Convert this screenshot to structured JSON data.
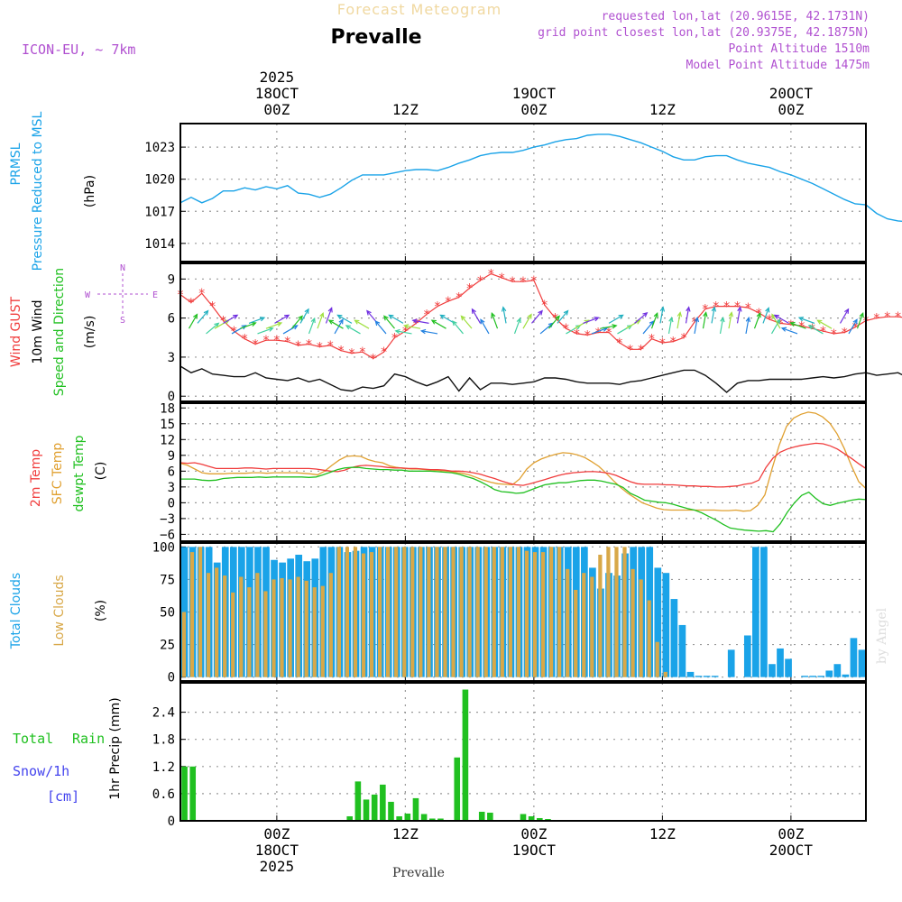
{
  "header": {
    "product": "Forecast Meteogram",
    "location": "Prevalle",
    "model": "ICON-EU, ~ 7km",
    "requested": "requested lon,lat (20.9615E, 42.1731N)",
    "grid_point": "grid point closest lon,lat (20.9375E, 42.1875N)",
    "point_alt": "Point Altitude 1510m",
    "model_alt": "Model Point Altitude 1475m",
    "footer_location": "Prevalle",
    "watermark": "by Angel"
  },
  "time_axis": {
    "labels": [
      {
        "idx": 0,
        "lines": [
          "2025",
          "18OCT",
          "00Z"
        ]
      },
      {
        "idx": 1,
        "lines": [
          "12Z"
        ]
      },
      {
        "idx": 2,
        "lines": [
          "19OCT",
          "00Z"
        ]
      },
      {
        "idx": 3,
        "lines": [
          "12Z"
        ]
      },
      {
        "idx": 4,
        "lines": [
          "20OCT",
          "00Z"
        ]
      },
      {
        "idx": 5,
        "lines": [
          "12Z"
        ]
      }
    ],
    "start_hour": -9,
    "end_hour": 55
  },
  "colors": {
    "pressure": "#1aa3e8",
    "gust": "#f03c3c",
    "wind": "#111111",
    "temp": "#f03c3c",
    "sfc": "#e0a030",
    "dewpt": "#20c020",
    "total_clouds": "#1aa3e8",
    "low_clouds": "#d8a848",
    "rain": "#20c020",
    "snow": "#4444ee",
    "meta": "#b050d0",
    "compass": "#b050d0"
  },
  "chart_data": [
    {
      "type": "line",
      "name": "pressure",
      "title": "PRMSL",
      "ylabel_lines": [
        "PRMSL",
        "Pressure Reduced to MSL"
      ],
      "unit": "(hPa)",
      "ylim": [
        1012.3,
        1025.2
      ],
      "yticks": [
        1014,
        1017,
        1020,
        1023
      ],
      "x_start": -9,
      "x_step": 1,
      "values": [
        1017.8,
        1018.3,
        1017.8,
        1018.2,
        1018.9,
        1018.9,
        1019.2,
        1019.0,
        1019.3,
        1019.1,
        1019.4,
        1018.7,
        1018.6,
        1018.3,
        1018.6,
        1019.2,
        1019.9,
        1020.4,
        1020.4,
        1020.4,
        1020.6,
        1020.8,
        1020.9,
        1020.9,
        1020.8,
        1021.1,
        1021.5,
        1021.8,
        1022.2,
        1022.4,
        1022.5,
        1022.5,
        1022.7,
        1023.0,
        1023.2,
        1023.5,
        1023.7,
        1023.8,
        1024.1,
        1024.2,
        1024.2,
        1024.0,
        1023.7,
        1023.4,
        1023.0,
        1022.6,
        1022.1,
        1021.8,
        1021.8,
        1022.1,
        1022.2,
        1022.2,
        1021.8,
        1021.5,
        1021.3,
        1021.1,
        1020.7,
        1020.4,
        1020.0,
        1019.6,
        1019.1,
        1018.6,
        1018.1,
        1017.7,
        1017.6,
        1016.8,
        1016.3,
        1016.1,
        1016.0,
        1015.7,
        1015.2,
        1014.6,
        1014.2,
        1013.9,
        1014.0,
        1014.1,
        1014.6
      ]
    },
    {
      "type": "line",
      "name": "wind",
      "ylabel_lines": [
        "Wind GUST",
        "10m Wind",
        "Speed and Direction"
      ],
      "unit": "(m/s)",
      "compass": {
        "n": "N",
        "s": "S",
        "w": "W",
        "e": "E"
      },
      "ylim": [
        -0.4,
        10.2
      ],
      "yticks": [
        0,
        3,
        6,
        9
      ],
      "x_start": -9,
      "x_step": 1,
      "gust": [
        7.8,
        7.2,
        7.9,
        6.9,
        5.8,
        5.0,
        4.4,
        4.0,
        4.3,
        4.3,
        4.2,
        3.9,
        4.0,
        3.8,
        3.9,
        3.5,
        3.3,
        3.4,
        2.9,
        3.4,
        4.5,
        5.0,
        5.6,
        6.3,
        6.9,
        7.3,
        7.6,
        8.3,
        8.9,
        9.4,
        9.1,
        8.8,
        8.8,
        8.9,
        7.0,
        6.0,
        5.2,
        4.8,
        4.7,
        4.9,
        4.9,
        4.1,
        3.6,
        3.6,
        4.4,
        4.1,
        4.2,
        4.5,
        5.7,
        6.7,
        6.9,
        6.9,
        6.9,
        6.8,
        6.4,
        5.9,
        5.6,
        5.5,
        5.4,
        5.2,
        5.0,
        4.8,
        4.9,
        5.3,
        5.8,
        6.0,
        6.1,
        6.1,
        6.0,
        5.8,
        5.8,
        5.6,
        5.9,
        6.3,
        6.8,
        7.4,
        7.7,
        7.7,
        7.5,
        6.9,
        5.7,
        5.9
      ],
      "wind": [
        2.3,
        1.8,
        2.1,
        1.7,
        1.6,
        1.5,
        1.5,
        1.8,
        1.4,
        1.3,
        1.2,
        1.4,
        1.1,
        1.3,
        0.9,
        0.5,
        0.4,
        0.7,
        0.6,
        0.8,
        1.7,
        1.5,
        1.1,
        0.8,
        1.1,
        1.5,
        0.4,
        1.4,
        0.5,
        1.0,
        1.0,
        0.9,
        1.0,
        1.1,
        1.4,
        1.4,
        1.3,
        1.1,
        1.0,
        1.0,
        1.0,
        0.9,
        1.1,
        1.2,
        1.4,
        1.6,
        1.8,
        2.0,
        2.0,
        1.6,
        1.0,
        0.3,
        1.0,
        1.2,
        1.2,
        1.3,
        1.3,
        1.3,
        1.3,
        1.4,
        1.5,
        1.4,
        1.5,
        1.7,
        1.8,
        1.6,
        1.7,
        1.8,
        1.4,
        1.1,
        1.2,
        1.3,
        1.5,
        1.9,
        1.8,
        1.8,
        1.6,
        1.0,
        0.5,
        1.2,
        1.6
      ],
      "arrows_deg": [
        30,
        40,
        50,
        60,
        60,
        60,
        70,
        70,
        70,
        70,
        60,
        60,
        40,
        30,
        20,
        20,
        20,
        30,
        300,
        300,
        300,
        300,
        320,
        320,
        320,
        300,
        280,
        280,
        280,
        280,
        300,
        300,
        320,
        320,
        330,
        330,
        340,
        350,
        20,
        30,
        40,
        50,
        40,
        40,
        60,
        60,
        70,
        70,
        80,
        60,
        60,
        60,
        50,
        40,
        20,
        10,
        10,
        10,
        10,
        10,
        10,
        10,
        10,
        10,
        10,
        10,
        20,
        20,
        30,
        330,
        300,
        290,
        290,
        290,
        300,
        300,
        30,
        30,
        20
      ]
    },
    {
      "type": "line",
      "name": "temperature",
      "ylabel_lines": [
        "2m Temp",
        "SFC Temp",
        "dewpt Temp"
      ],
      "unit": "(C)",
      "ylim": [
        -7.3,
        18.9
      ],
      "yticks": [
        -6,
        -3,
        0,
        3,
        6,
        9,
        12,
        15,
        18
      ],
      "x_start": -9,
      "x_step": 1,
      "series": [
        {
          "name": "2m Temp",
          "values": [
            7.6,
            7.5,
            7.6,
            7.3,
            6.9,
            6.5,
            6.5,
            6.5,
            6.5,
            6.6,
            6.6,
            6.5,
            6.4,
            6.5,
            6.5,
            6.5,
            6.5,
            6.5,
            6.5,
            6.4,
            6.2,
            6.0,
            5.9,
            6.2,
            6.7,
            7.0,
            7.1,
            7.0,
            6.9,
            6.7,
            6.6,
            6.6,
            6.5,
            6.5,
            6.4,
            6.3,
            6.3,
            6.2,
            6.0,
            6.0,
            5.9,
            5.7,
            5.4,
            5.0,
            4.6,
            4.1,
            3.7,
            3.4,
            3.3,
            3.6,
            4.0,
            4.4,
            4.8,
            5.2,
            5.5,
            5.7,
            5.8,
            5.9,
            5.9,
            5.8,
            5.6,
            5.2,
            4.6,
            4.0,
            3.6,
            3.5,
            3.5,
            3.5,
            3.4,
            3.4,
            3.3,
            3.2,
            3.2,
            3.1,
            3.1,
            3.0,
            3.0,
            3.1,
            3.2,
            3.5,
            3.7,
            4.3,
            6.7,
            8.5,
            9.6,
            10.2,
            10.6,
            10.9,
            11.1,
            11.3,
            11.2,
            10.8,
            10.2,
            9.3,
            8.4,
            7.4,
            6.5
          ]
        },
        {
          "name": "SFC Temp",
          "values": [
            7.5,
            7.1,
            6.4,
            5.7,
            5.5,
            5.5,
            5.5,
            5.6,
            5.6,
            5.6,
            5.7,
            5.7,
            5.6,
            5.7,
            5.7,
            5.7,
            5.7,
            5.6,
            5.5,
            5.3,
            6.0,
            7.1,
            8.1,
            8.8,
            8.9,
            8.8,
            8.2,
            7.8,
            7.6,
            7.0,
            6.7,
            6.5,
            6.4,
            6.4,
            6.3,
            6.2,
            6.1,
            6.0,
            5.8,
            5.6,
            5.3,
            4.8,
            4.3,
            3.9,
            3.6,
            3.5,
            3.4,
            4.5,
            6.4,
            7.6,
            8.3,
            8.8,
            9.2,
            9.5,
            9.4,
            9.1,
            8.6,
            7.8,
            6.9,
            5.6,
            4.2,
            2.9,
            1.8,
            0.9,
            0.0,
            -0.5,
            -1.0,
            -1.3,
            -1.4,
            -1.4,
            -1.4,
            -1.4,
            -1.4,
            -1.4,
            -1.4,
            -1.5,
            -1.5,
            -1.4,
            -1.6,
            -1.5,
            -0.5,
            1.5,
            6.5,
            11.0,
            14.5,
            16.1,
            16.8,
            17.2,
            17.0,
            16.3,
            15.1,
            13.1,
            10.3,
            7.0,
            4.0,
            2.7
          ]
        },
        {
          "name": "dewpt Temp",
          "values": [
            4.5,
            4.5,
            4.5,
            4.3,
            4.2,
            4.3,
            4.6,
            4.7,
            4.8,
            4.8,
            4.8,
            4.9,
            4.8,
            4.9,
            4.9,
            4.9,
            4.9,
            4.9,
            4.8,
            4.9,
            5.3,
            5.8,
            6.3,
            6.6,
            6.7,
            6.7,
            6.5,
            6.4,
            6.3,
            6.3,
            6.2,
            6.2,
            6.0,
            6.0,
            6.0,
            6.0,
            5.9,
            5.8,
            5.7,
            5.4,
            5.0,
            4.6,
            4.0,
            3.3,
            2.5,
            2.1,
            2.0,
            1.8,
            1.9,
            2.4,
            2.9,
            3.4,
            3.6,
            3.8,
            3.8,
            4.0,
            4.2,
            4.3,
            4.3,
            4.1,
            3.8,
            3.5,
            2.9,
            1.8,
            1.2,
            0.5,
            0.3,
            0.1,
            0.0,
            -0.3,
            -0.7,
            -1.1,
            -1.4,
            -1.9,
            -2.6,
            -3.3,
            -4.1,
            -4.8,
            -5.0,
            -5.2,
            -5.3,
            -5.4,
            -5.3,
            -5.5,
            -4.0,
            -1.8,
            0.0,
            1.4,
            2.0,
            0.8,
            -0.2,
            -0.5,
            -0.1,
            0.2,
            0.5,
            0.7,
            0.6
          ]
        }
      ]
    },
    {
      "type": "bar",
      "name": "clouds",
      "ylabel_lines": [
        "Total Clouds",
        "Low Clouds"
      ],
      "unit": "(%)",
      "ylim": [
        -3,
        103
      ],
      "yticks": [
        0,
        25,
        50,
        75,
        100
      ],
      "x_start": -9,
      "x_step": 1,
      "series": [
        {
          "name": "Total Clouds",
          "values": [
            100,
            100,
            100,
            100,
            88,
            100,
            100,
            100,
            100,
            100,
            100,
            90,
            88,
            91,
            94,
            89,
            91,
            100,
            100,
            100,
            96,
            97,
            100,
            100,
            100,
            100,
            100,
            100,
            100,
            100,
            100,
            100,
            100,
            100,
            100,
            100,
            100,
            100,
            100,
            100,
            100,
            100,
            100,
            100,
            100,
            100,
            100,
            100,
            100,
            100,
            84,
            68,
            80,
            78,
            95,
            100,
            100,
            100,
            84,
            80,
            60,
            40,
            4,
            1,
            1,
            1,
            0,
            21,
            0,
            32,
            100,
            100,
            10,
            22,
            14,
            0,
            1,
            1,
            1,
            5,
            10,
            2,
            30,
            21
          ]
        },
        {
          "name": "Low Clouds",
          "values": [
            50,
            96,
            100,
            80,
            84,
            78,
            65,
            77,
            69,
            80,
            66,
            75,
            76,
            75,
            77,
            74,
            69,
            70,
            80,
            100,
            100,
            100,
            95,
            96,
            100,
            100,
            100,
            100,
            100,
            100,
            100,
            100,
            100,
            100,
            100,
            100,
            100,
            100,
            100,
            100,
            100,
            100,
            97,
            96,
            96,
            100,
            100,
            83,
            67,
            80,
            77,
            94,
            100,
            100,
            100,
            83,
            75,
            59,
            27,
            4,
            0,
            0,
            0,
            0,
            0,
            0,
            0,
            0,
            0,
            0,
            0,
            0,
            0,
            0,
            0,
            0,
            0,
            0,
            0,
            0,
            0,
            0,
            0,
            0
          ]
        }
      ]
    },
    {
      "type": "bar",
      "name": "precipitation",
      "ylabel": "1hr Precip (mm)",
      "left_labels": {
        "total": "Total",
        "rain": "Rain",
        "snow": "Snow/1h",
        "cm": "[cm]"
      },
      "ylim": [
        0,
        3.05
      ],
      "yticks": [
        0,
        0.6,
        1.2,
        1.8,
        2.4
      ],
      "ytick_labels": [
        "0",
        "0.6",
        "1.2",
        "1.8",
        "2.4"
      ],
      "x_start": -9,
      "x_step": 1,
      "values": [
        1.2,
        1.2,
        0,
        0,
        0,
        0,
        0,
        0,
        0,
        0,
        0,
        0,
        0,
        0,
        0,
        0,
        0,
        0,
        0,
        0,
        0.1,
        0.87,
        0.47,
        0.58,
        0.8,
        0.42,
        0.1,
        0.16,
        0.5,
        0.15,
        0.05,
        0.05,
        0,
        1.4,
        2.9,
        0,
        0.2,
        0.18,
        0,
        0,
        0.02,
        0.15,
        0.1,
        0.06,
        0.04,
        0,
        0,
        0,
        0,
        0,
        0,
        0,
        0,
        0,
        0,
        0,
        0,
        0,
        0,
        0,
        0,
        0,
        0,
        0,
        0,
        0,
        0,
        0,
        0,
        0,
        0,
        0,
        0,
        0,
        0,
        0,
        0,
        0,
        0,
        0,
        0,
        0,
        0
      ]
    }
  ]
}
